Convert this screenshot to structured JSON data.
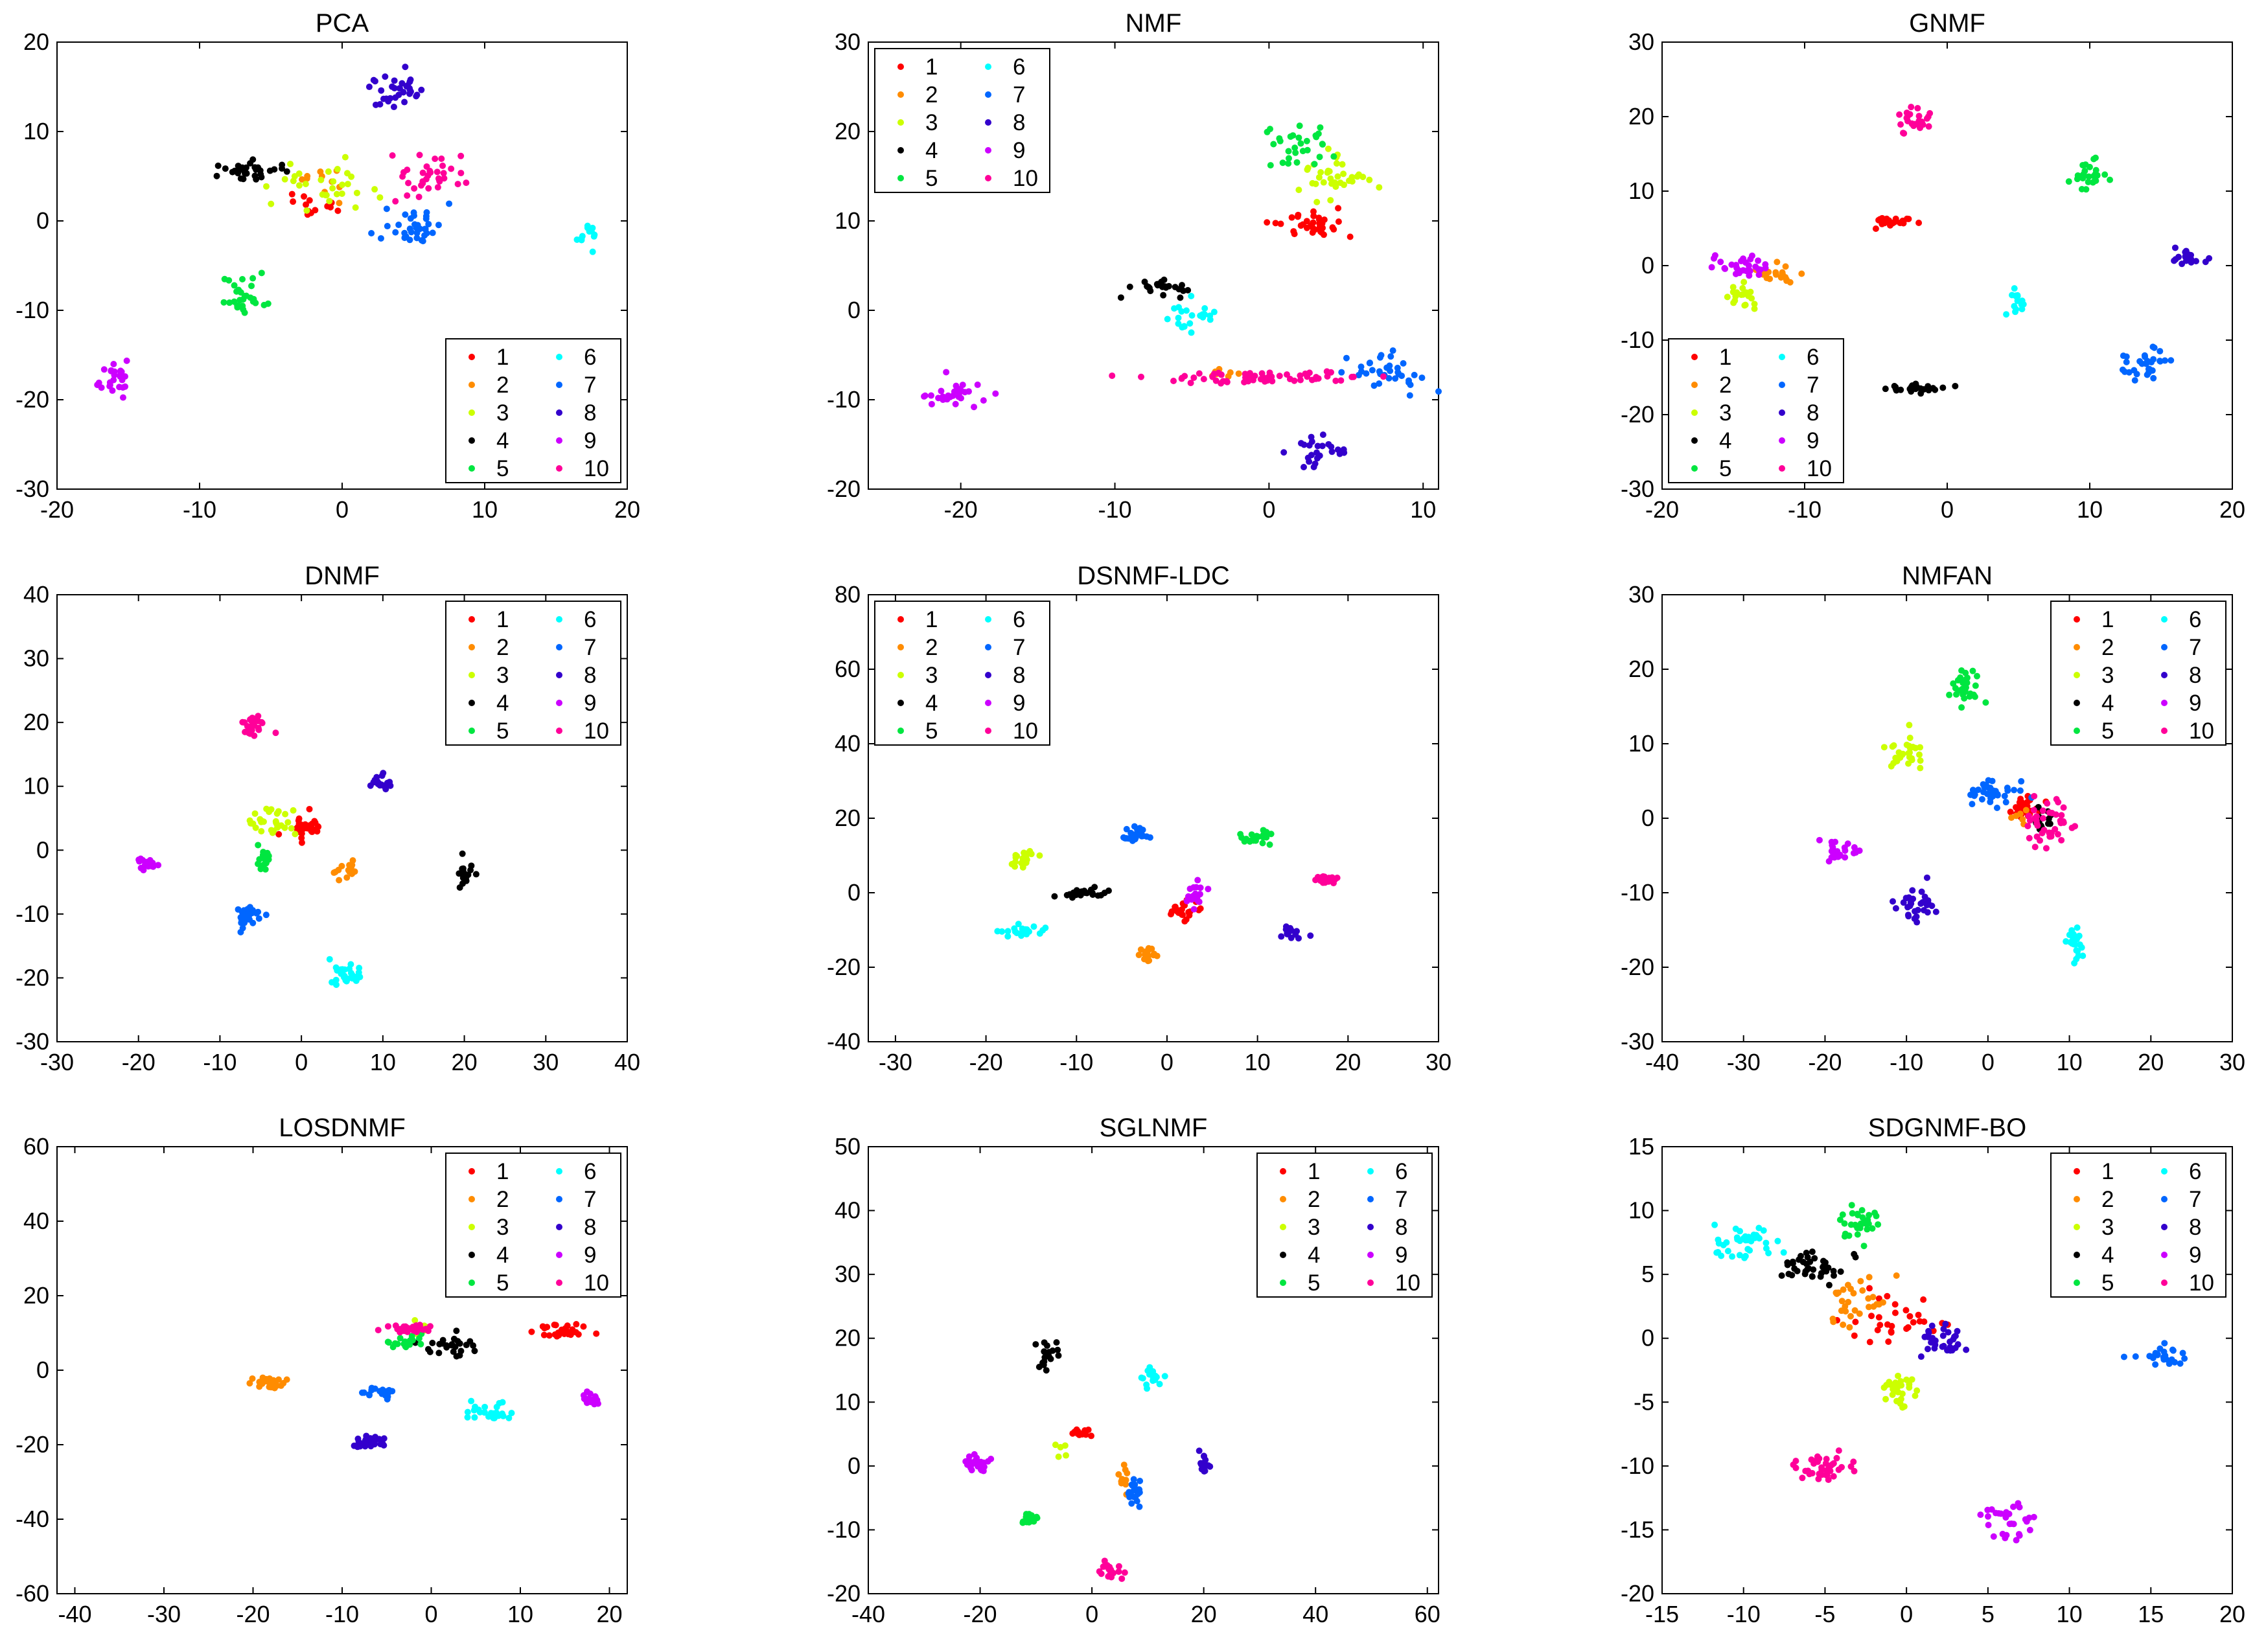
{
  "figure": {
    "description_free": true
  },
  "class_colors": {
    "1": "#ff0000",
    "2": "#ff8c00",
    "3": "#ccff00",
    "4": "#000000",
    "5": "#00e640",
    "6": "#00ffff",
    "7": "#0066ff",
    "8": "#3300cc",
    "9": "#cc00ff",
    "10": "#ff0099"
  },
  "chart_data": [
    {
      "type": "scatter",
      "title": "PCA",
      "xlim": [
        -20,
        20
      ],
      "ylim": [
        -30,
        20
      ],
      "xticks": [
        -20,
        -10,
        0,
        10,
        20
      ],
      "yticks": [
        -30,
        -20,
        -10,
        0,
        10,
        20
      ],
      "legend": {
        "position": "bottom-right",
        "labels": [
          "1",
          "2",
          "3",
          "4",
          "5",
          "6",
          "7",
          "8",
          "9",
          "10"
        ]
      },
      "clusters": [
        {
          "label": "1",
          "cx": -2,
          "cy": 2,
          "sx": 1.0,
          "sy": 0.8,
          "n": 14
        },
        {
          "label": "2",
          "cx": -1,
          "cy": 4.5,
          "sx": 0.8,
          "sy": 1.0,
          "n": 10
        },
        {
          "label": "3",
          "cx": -1.5,
          "cy": 4,
          "sx": 2.0,
          "sy": 1.5,
          "n": 30
        },
        {
          "label": "4",
          "cx": -7,
          "cy": 5.5,
          "sx": 1.2,
          "sy": 0.6,
          "n": 30
        },
        {
          "label": "5",
          "cx": -7,
          "cy": -8.5,
          "sx": 0.8,
          "sy": 1.0,
          "n": 30
        },
        {
          "label": "6",
          "cx": 17,
          "cy": -1.5,
          "sx": 0.4,
          "sy": 0.8,
          "n": 12
        },
        {
          "label": "7",
          "cx": 4.8,
          "cy": -0.5,
          "sx": 1.0,
          "sy": 1.0,
          "n": 35
        },
        {
          "label": "8",
          "cx": 4,
          "cy": 14.5,
          "sx": 1.3,
          "sy": 1.0,
          "n": 35
        },
        {
          "label": "9",
          "cx": -15.8,
          "cy": -17.8,
          "sx": 0.7,
          "sy": 1.0,
          "n": 25
        },
        {
          "label": "10",
          "cx": 6,
          "cy": 5,
          "sx": 1.3,
          "sy": 1.2,
          "n": 35
        }
      ]
    },
    {
      "type": "scatter",
      "title": "NMF",
      "xlim": [
        -26,
        11
      ],
      "ylim": [
        -20,
        30
      ],
      "xticks": [
        -20,
        -10,
        0,
        10
      ],
      "yticks": [
        -20,
        -10,
        0,
        10,
        20,
        30
      ],
      "legend": {
        "position": "top-left",
        "labels": [
          "1",
          "2",
          "3",
          "4",
          "5",
          "6",
          "7",
          "8",
          "9",
          "10"
        ]
      },
      "clusters": [
        {
          "label": "1",
          "cx": 2.5,
          "cy": 9.5,
          "sx": 1.2,
          "sy": 0.8,
          "n": 35
        },
        {
          "label": "2",
          "cx": -3,
          "cy": -7,
          "sx": 0.6,
          "sy": 0.3,
          "n": 8
        },
        {
          "label": "3",
          "cx": 4,
          "cy": 14.5,
          "sx": 1.2,
          "sy": 1.2,
          "n": 35
        },
        {
          "label": "4",
          "cx": -7,
          "cy": 2.5,
          "sx": 0.8,
          "sy": 0.4,
          "n": 25
        },
        {
          "label": "5",
          "cx": 1.5,
          "cy": 18.5,
          "sx": 1.2,
          "sy": 1.0,
          "n": 30
        },
        {
          "label": "6",
          "cx": -5,
          "cy": -1,
          "sx": 1.0,
          "sy": 1.0,
          "n": 25
        },
        {
          "label": "7",
          "cx": 7.5,
          "cy": -7,
          "sx": 1.2,
          "sy": 1.0,
          "n": 35
        },
        {
          "label": "8",
          "cx": 3,
          "cy": -16,
          "sx": 0.9,
          "sy": 1.0,
          "n": 25
        },
        {
          "label": "9",
          "cx": -20.5,
          "cy": -9.5,
          "sx": 1.0,
          "sy": 0.7,
          "n": 30
        },
        {
          "label": "10",
          "cx": -0.5,
          "cy": -7.5,
          "sx": 3.5,
          "sy": 0.3,
          "n": 60
        }
      ]
    },
    {
      "type": "scatter",
      "title": "GNMF",
      "xlim": [
        -20,
        20
      ],
      "ylim": [
        -30,
        30
      ],
      "xticks": [
        -20,
        -10,
        0,
        10,
        20
      ],
      "yticks": [
        -30,
        -20,
        -10,
        0,
        10,
        20,
        30
      ],
      "legend": {
        "position": "bottom-left",
        "labels": [
          "1",
          "2",
          "3",
          "4",
          "5",
          "6",
          "7",
          "8",
          "9",
          "10"
        ]
      },
      "clusters": [
        {
          "label": "1",
          "cx": -3.5,
          "cy": 6,
          "sx": 1.0,
          "sy": 0.3,
          "n": 25
        },
        {
          "label": "2",
          "cx": -12,
          "cy": -1,
          "sx": 0.8,
          "sy": 0.8,
          "n": 20
        },
        {
          "label": "3",
          "cx": -14.5,
          "cy": -4,
          "sx": 0.6,
          "sy": 1.0,
          "n": 20
        },
        {
          "label": "4",
          "cx": -2.5,
          "cy": -16.5,
          "sx": 1.0,
          "sy": 0.3,
          "n": 25
        },
        {
          "label": "5",
          "cx": 10,
          "cy": 12,
          "sx": 0.6,
          "sy": 1.0,
          "n": 25
        },
        {
          "label": "6",
          "cx": 5,
          "cy": -4.5,
          "sx": 0.4,
          "sy": 0.8,
          "n": 15
        },
        {
          "label": "7",
          "cx": 14,
          "cy": -13,
          "sx": 0.9,
          "sy": 1.0,
          "n": 30
        },
        {
          "label": "8",
          "cx": 16.8,
          "cy": 1,
          "sx": 0.5,
          "sy": 0.5,
          "n": 20
        },
        {
          "label": "9",
          "cx": -14.3,
          "cy": -0.2,
          "sx": 0.8,
          "sy": 0.7,
          "n": 30
        },
        {
          "label": "10",
          "cx": -2.5,
          "cy": 19.5,
          "sx": 0.6,
          "sy": 0.8,
          "n": 25
        }
      ]
    },
    {
      "type": "scatter",
      "title": "DNMF",
      "xlim": [
        -30,
        40
      ],
      "ylim": [
        -30,
        40
      ],
      "xticks": [
        -30,
        -20,
        -10,
        0,
        10,
        20,
        30,
        40
      ],
      "yticks": [
        -30,
        -20,
        -10,
        0,
        10,
        20,
        30,
        40
      ],
      "legend": {
        "position": "top-right",
        "labels": [
          "1",
          "2",
          "3",
          "4",
          "5",
          "6",
          "7",
          "8",
          "9",
          "10"
        ]
      },
      "clusters": [
        {
          "label": "1",
          "cx": 0.5,
          "cy": 3.5,
          "sx": 1.2,
          "sy": 1.0,
          "n": 30
        },
        {
          "label": "2",
          "cx": 5.5,
          "cy": -3,
          "sx": 1.0,
          "sy": 0.8,
          "n": 15
        },
        {
          "label": "3",
          "cx": -3.5,
          "cy": 4,
          "sx": 1.3,
          "sy": 1.2,
          "n": 30
        },
        {
          "label": "4",
          "cx": 20,
          "cy": -3.5,
          "sx": 0.6,
          "sy": 1.0,
          "n": 15
        },
        {
          "label": "5",
          "cx": -4.5,
          "cy": -0.5,
          "sx": 0.5,
          "sy": 1.2,
          "n": 15
        },
        {
          "label": "6",
          "cx": 5.5,
          "cy": -19,
          "sx": 1.2,
          "sy": 1.0,
          "n": 30
        },
        {
          "label": "7",
          "cx": -7,
          "cy": -10.5,
          "sx": 0.8,
          "sy": 1.0,
          "n": 30
        },
        {
          "label": "8",
          "cx": 10,
          "cy": 10.5,
          "sx": 0.8,
          "sy": 0.7,
          "n": 20
        },
        {
          "label": "9",
          "cx": -19,
          "cy": -2.2,
          "sx": 1.0,
          "sy": 0.5,
          "n": 20
        },
        {
          "label": "10",
          "cx": -6,
          "cy": 19.5,
          "sx": 0.8,
          "sy": 1.0,
          "n": 30
        }
      ]
    },
    {
      "type": "scatter",
      "title": "DSNMF-LDC",
      "xlim": [
        -33,
        30
      ],
      "ylim": [
        -40,
        80
      ],
      "xticks": [
        -30,
        -20,
        -10,
        0,
        10,
        20,
        30
      ],
      "yticks": [
        -40,
        -20,
        0,
        20,
        40,
        60,
        80
      ],
      "legend": {
        "position": "top-left",
        "labels": [
          "1",
          "2",
          "3",
          "4",
          "5",
          "6",
          "7",
          "8",
          "9",
          "10"
        ]
      },
      "clusters": [
        {
          "label": "1",
          "cx": 1.5,
          "cy": -5,
          "sx": 0.8,
          "sy": 1.2,
          "n": 25
        },
        {
          "label": "2",
          "cx": -2,
          "cy": -17,
          "sx": 0.5,
          "sy": 1.5,
          "n": 20
        },
        {
          "label": "3",
          "cx": -16,
          "cy": 9.5,
          "sx": 1.0,
          "sy": 1.2,
          "n": 20
        },
        {
          "label": "4",
          "cx": -9.5,
          "cy": 0,
          "sx": 1.3,
          "sy": 0.8,
          "n": 25
        },
        {
          "label": "5",
          "cx": 10,
          "cy": 14.5,
          "sx": 0.8,
          "sy": 1.0,
          "n": 25
        },
        {
          "label": "6",
          "cx": -16,
          "cy": -10.5,
          "sx": 1.3,
          "sy": 1.0,
          "n": 20
        },
        {
          "label": "7",
          "cx": -3.5,
          "cy": 15.5,
          "sx": 0.8,
          "sy": 1.0,
          "n": 25
        },
        {
          "label": "8",
          "cx": 13.5,
          "cy": -11,
          "sx": 0.6,
          "sy": 1.0,
          "n": 15
        },
        {
          "label": "9",
          "cx": 3,
          "cy": -1,
          "sx": 0.5,
          "sy": 2.0,
          "n": 20
        },
        {
          "label": "10",
          "cx": 17.5,
          "cy": 3.5,
          "sx": 0.6,
          "sy": 0.6,
          "n": 25
        }
      ]
    },
    {
      "type": "scatter",
      "title": "NMFAN",
      "xlim": [
        -40,
        30
      ],
      "ylim": [
        -30,
        30
      ],
      "xticks": [
        -40,
        -30,
        -20,
        -10,
        0,
        10,
        20,
        30
      ],
      "yticks": [
        -30,
        -20,
        -10,
        0,
        10,
        20,
        30
      ],
      "legend": {
        "position": "top-right",
        "labels": [
          "1",
          "2",
          "3",
          "4",
          "5",
          "6",
          "7",
          "8",
          "9",
          "10"
        ]
      },
      "clusters": [
        {
          "label": "1",
          "cx": 4.5,
          "cy": 1.5,
          "sx": 1.2,
          "sy": 0.8,
          "n": 30
        },
        {
          "label": "2",
          "cx": 4,
          "cy": 0.5,
          "sx": 0.6,
          "sy": 0.6,
          "n": 6
        },
        {
          "label": "3",
          "cx": -10,
          "cy": 9,
          "sx": 1.2,
          "sy": 1.2,
          "n": 30
        },
        {
          "label": "4",
          "cx": 7,
          "cy": 0,
          "sx": 1.0,
          "sy": 0.8,
          "n": 15
        },
        {
          "label": "5",
          "cx": -2.5,
          "cy": 17.5,
          "sx": 1.0,
          "sy": 1.2,
          "n": 30
        },
        {
          "label": "6",
          "cx": 10.5,
          "cy": -17,
          "sx": 0.6,
          "sy": 1.2,
          "n": 25
        },
        {
          "label": "7",
          "cx": 0.5,
          "cy": 3.5,
          "sx": 1.5,
          "sy": 0.8,
          "n": 35
        },
        {
          "label": "8",
          "cx": -9,
          "cy": -12,
          "sx": 1.2,
          "sy": 1.0,
          "n": 30
        },
        {
          "label": "9",
          "cx": -18,
          "cy": -4.5,
          "sx": 1.3,
          "sy": 0.8,
          "n": 25
        },
        {
          "label": "10",
          "cx": 7.5,
          "cy": -1,
          "sx": 1.8,
          "sy": 1.8,
          "n": 40
        }
      ]
    },
    {
      "type": "scatter",
      "title": "LOSDNMF",
      "xlim": [
        -42,
        22
      ],
      "ylim": [
        -60,
        60
      ],
      "xticks": [
        -40,
        -30,
        -20,
        -10,
        0,
        10,
        20
      ],
      "yticks": [
        -60,
        -40,
        -20,
        0,
        20,
        40,
        60
      ],
      "legend": {
        "position": "top-right",
        "labels": [
          "1",
          "2",
          "3",
          "4",
          "5",
          "6",
          "7",
          "8",
          "9",
          "10"
        ]
      },
      "clusters": [
        {
          "label": "1",
          "cx": 15,
          "cy": 10.5,
          "sx": 1.5,
          "sy": 1.0,
          "n": 35
        },
        {
          "label": "2",
          "cx": -18.5,
          "cy": -3.5,
          "sx": 1.0,
          "sy": 0.8,
          "n": 25
        },
        {
          "label": "3",
          "cx": -1,
          "cy": 11,
          "sx": 1.0,
          "sy": 1.0,
          "n": 8
        },
        {
          "label": "4",
          "cx": 2,
          "cy": 7,
          "sx": 1.5,
          "sy": 2.0,
          "n": 25
        },
        {
          "label": "5",
          "cx": -2.5,
          "cy": 7.5,
          "sx": 1.2,
          "sy": 1.2,
          "n": 20
        },
        {
          "label": "6",
          "cx": 6.5,
          "cy": -11,
          "sx": 1.3,
          "sy": 1.5,
          "n": 25
        },
        {
          "label": "7",
          "cx": -5.5,
          "cy": -6,
          "sx": 1.2,
          "sy": 0.6,
          "n": 20
        },
        {
          "label": "8",
          "cx": -7,
          "cy": -19.5,
          "sx": 1.0,
          "sy": 1.0,
          "n": 25
        },
        {
          "label": "9",
          "cx": 18,
          "cy": -7.5,
          "sx": 0.7,
          "sy": 1.0,
          "n": 20
        },
        {
          "label": "10",
          "cx": -2.5,
          "cy": 11,
          "sx": 1.0,
          "sy": 0.6,
          "n": 30
        }
      ]
    },
    {
      "type": "scatter",
      "title": "SGLNMF",
      "xlim": [
        -40,
        62
      ],
      "ylim": [
        -20,
        50
      ],
      "xticks": [
        -40,
        -20,
        0,
        20,
        40,
        60
      ],
      "yticks": [
        -20,
        -10,
        0,
        10,
        20,
        30,
        40,
        50
      ],
      "legend": {
        "position": "top-right",
        "labels": [
          "1",
          "2",
          "3",
          "4",
          "5",
          "6",
          "7",
          "8",
          "9",
          "10"
        ]
      },
      "clusters": [
        {
          "label": "1",
          "cx": -2,
          "cy": 5.2,
          "sx": 1.0,
          "sy": 0.3,
          "n": 12
        },
        {
          "label": "2",
          "cx": 5.5,
          "cy": -2,
          "sx": 0.6,
          "sy": 1.0,
          "n": 10
        },
        {
          "label": "3",
          "cx": -6,
          "cy": 2,
          "sx": 0.8,
          "sy": 1.5,
          "n": 5
        },
        {
          "label": "4",
          "cx": -8,
          "cy": 17.5,
          "sx": 1.0,
          "sy": 1.0,
          "n": 20
        },
        {
          "label": "5",
          "cx": -11,
          "cy": -8.5,
          "sx": 0.8,
          "sy": 0.5,
          "n": 20
        },
        {
          "label": "6",
          "cx": 11,
          "cy": 14,
          "sx": 0.8,
          "sy": 0.8,
          "n": 20
        },
        {
          "label": "7",
          "cx": 7.5,
          "cy": -4,
          "sx": 0.8,
          "sy": 1.2,
          "n": 20
        },
        {
          "label": "8",
          "cx": 20,
          "cy": 0.5,
          "sx": 0.4,
          "sy": 1.0,
          "n": 15
        },
        {
          "label": "9",
          "cx": -20.5,
          "cy": 0.5,
          "sx": 1.0,
          "sy": 0.8,
          "n": 25
        },
        {
          "label": "10",
          "cx": 3.5,
          "cy": -16.5,
          "sx": 0.8,
          "sy": 0.6,
          "n": 20
        }
      ]
    },
    {
      "type": "scatter",
      "title": "SDGNMF-BO",
      "xlim": [
        -15,
        20
      ],
      "ylim": [
        -20,
        15
      ],
      "xticks": [
        -15,
        -10,
        -5,
        0,
        5,
        10,
        15,
        20
      ],
      "yticks": [
        -20,
        -15,
        -10,
        -5,
        0,
        5,
        10,
        15
      ],
      "legend": {
        "position": "top-right",
        "labels": [
          "1",
          "2",
          "3",
          "4",
          "5",
          "6",
          "7",
          "8",
          "9",
          "10"
        ]
      },
      "clusters": [
        {
          "label": "1",
          "cx": -0.5,
          "cy": 1.5,
          "sx": 1.5,
          "sy": 1.2,
          "n": 30
        },
        {
          "label": "2",
          "cx": -3,
          "cy": 2.5,
          "sx": 1.0,
          "sy": 1.0,
          "n": 30
        },
        {
          "label": "3",
          "cx": -0.5,
          "cy": -4,
          "sx": 0.5,
          "sy": 0.8,
          "n": 30
        },
        {
          "label": "4",
          "cx": -6,
          "cy": 5.7,
          "sx": 1.2,
          "sy": 0.6,
          "n": 40
        },
        {
          "label": "5",
          "cx": -3,
          "cy": 9,
          "sx": 0.6,
          "sy": 0.8,
          "n": 30
        },
        {
          "label": "6",
          "cx": -10,
          "cy": 7.2,
          "sx": 1.0,
          "sy": 0.8,
          "n": 40
        },
        {
          "label": "7",
          "cx": 15.5,
          "cy": -1.5,
          "sx": 0.7,
          "sy": 0.4,
          "n": 25
        },
        {
          "label": "8",
          "cx": 2.5,
          "cy": -0.5,
          "sx": 0.8,
          "sy": 0.6,
          "n": 30
        },
        {
          "label": "9",
          "cx": 6.5,
          "cy": -14,
          "sx": 0.8,
          "sy": 1.0,
          "n": 30
        },
        {
          "label": "10",
          "cx": -5,
          "cy": -10,
          "sx": 0.8,
          "sy": 0.6,
          "n": 40
        }
      ]
    }
  ]
}
